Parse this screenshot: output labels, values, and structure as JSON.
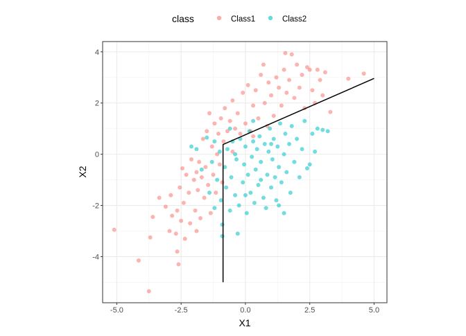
{
  "chart_data": {
    "type": "scatter",
    "xlabel": "X1",
    "ylabel": "X2",
    "xlim": [
      -5.55,
      5.5
    ],
    "ylim": [
      -5.8,
      4.4
    ],
    "x_ticks": [
      -5.0,
      -2.5,
      0.0,
      2.5,
      5.0
    ],
    "x_tick_labels": [
      "-5.0",
      "-2.5",
      "0.0",
      "2.5",
      "5.0"
    ],
    "y_ticks": [
      -4,
      -2,
      0,
      2,
      4
    ],
    "y_tick_labels": [
      "-4",
      "-2",
      "0",
      "2",
      "4"
    ],
    "grid": true,
    "legend": {
      "title": "class",
      "placement": "top"
    },
    "series": [
      {
        "name": "Class1",
        "color": "#F8766D",
        "points": [
          [
            -5.1,
            -2.95
          ],
          [
            -4.15,
            -4.15
          ],
          [
            -3.75,
            -5.35
          ],
          [
            -3.7,
            -3.25
          ],
          [
            -3.6,
            -2.45
          ],
          [
            -3.35,
            -1.7
          ],
          [
            -3.1,
            -2.05
          ],
          [
            -2.95,
            -3.0
          ],
          [
            -2.85,
            -2.4
          ],
          [
            -2.7,
            -3.1
          ],
          [
            -2.65,
            -3.8
          ],
          [
            -2.6,
            -4.3
          ],
          [
            -2.65,
            -2.2
          ],
          [
            -2.55,
            -1.3
          ],
          [
            -2.5,
            -2.6
          ],
          [
            -2.45,
            -0.55
          ],
          [
            -2.4,
            -1.9
          ],
          [
            -2.35,
            -3.3
          ],
          [
            -2.3,
            -0.8
          ],
          [
            -2.2,
            -1.5
          ],
          [
            -2.15,
            -2.7
          ],
          [
            -2.1,
            -0.2
          ],
          [
            -2.0,
            -1.0
          ],
          [
            -1.95,
            -2.2
          ],
          [
            -1.9,
            -0.7
          ],
          [
            -1.85,
            -1.4
          ],
          [
            -1.8,
            -0.3
          ],
          [
            -1.75,
            -2.5
          ],
          [
            -1.7,
            -0.9
          ],
          [
            -1.65,
            0.6
          ],
          [
            -1.6,
            -1.7
          ],
          [
            -1.55,
            -0.5
          ],
          [
            -1.5,
            0.9
          ],
          [
            -1.45,
            -1.2
          ],
          [
            -1.4,
            1.6
          ],
          [
            -1.35,
            -2.3
          ],
          [
            -1.3,
            0.3
          ],
          [
            -1.25,
            -0.8
          ],
          [
            -1.2,
            1.2
          ],
          [
            -1.15,
            -1.5
          ],
          [
            -1.1,
            0.0
          ],
          [
            -1.05,
            0.8
          ],
          [
            -1.0,
            -0.4
          ],
          [
            -0.95,
            1.4
          ],
          [
            -0.9,
            -1.1
          ],
          [
            -0.85,
            0.5
          ],
          [
            -0.8,
            1.8
          ],
          [
            -0.7,
            0.9
          ],
          [
            -0.6,
            1.3
          ],
          [
            -0.5,
            2.1
          ],
          [
            -0.4,
            1.0
          ],
          [
            -0.3,
            1.6
          ],
          [
            -0.2,
            0.8
          ],
          [
            -0.1,
            2.4
          ],
          [
            0.0,
            1.2
          ],
          [
            0.1,
            2.7
          ],
          [
            0.2,
            0.9
          ],
          [
            0.3,
            1.9
          ],
          [
            0.4,
            2.5
          ],
          [
            0.5,
            1.4
          ],
          [
            0.6,
            3.1
          ],
          [
            0.7,
            3.5
          ],
          [
            0.75,
            2.0
          ],
          [
            0.85,
            1.1
          ],
          [
            0.9,
            2.8
          ],
          [
            1.0,
            2.3
          ],
          [
            1.1,
            1.5
          ],
          [
            1.2,
            3.0
          ],
          [
            1.3,
            2.6
          ],
          [
            1.4,
            1.9
          ],
          [
            1.5,
            3.3
          ],
          [
            1.55,
            3.95
          ],
          [
            1.6,
            2.4
          ],
          [
            1.7,
            2.9
          ],
          [
            1.8,
            3.9
          ],
          [
            1.9,
            2.2
          ],
          [
            2.0,
            3.5
          ],
          [
            2.1,
            2.6
          ],
          [
            2.2,
            3.1
          ],
          [
            2.3,
            1.8
          ],
          [
            2.4,
            3.4
          ],
          [
            2.5,
            3.3
          ],
          [
            2.6,
            2.5
          ],
          [
            2.7,
            2.0
          ],
          [
            2.8,
            3.3
          ],
          [
            2.9,
            2.9
          ],
          [
            3.0,
            2.3
          ],
          [
            3.1,
            3.2
          ],
          [
            3.3,
            1.65
          ],
          [
            4.0,
            2.95
          ],
          [
            4.6,
            3.15
          ],
          [
            -1.9,
            -3.0
          ],
          [
            -2.9,
            -1.6
          ],
          [
            -0.5,
            0.1
          ],
          [
            0.3,
            0.7
          ]
        ]
      },
      {
        "name": "Class2",
        "color": "#00BFC4",
        "points": [
          [
            -2.1,
            0.3
          ],
          [
            -1.9,
            0.2
          ],
          [
            -1.5,
            0.65
          ],
          [
            -1.7,
            -0.6
          ],
          [
            -1.4,
            -1.5
          ],
          [
            -1.3,
            -0.3
          ],
          [
            -1.2,
            -2.1
          ],
          [
            -1.1,
            -1.0
          ],
          [
            -1.0,
            0.1
          ],
          [
            -0.95,
            -1.8
          ],
          [
            -0.9,
            -2.75
          ],
          [
            -0.9,
            -3.2
          ],
          [
            -0.8,
            -0.5
          ],
          [
            -0.75,
            -1.3
          ],
          [
            -0.7,
            0.2
          ],
          [
            -0.6,
            -2.2
          ],
          [
            -0.55,
            -0.9
          ],
          [
            -0.5,
            0.5
          ],
          [
            -0.4,
            -1.6
          ],
          [
            -0.35,
            -0.2
          ],
          [
            -0.3,
            -3.1
          ],
          [
            -0.25,
            -2.0
          ],
          [
            -0.2,
            0.6
          ],
          [
            -0.1,
            -1.1
          ],
          [
            -0.05,
            -0.4
          ],
          [
            0.0,
            0.3
          ],
          [
            0.05,
            -2.3
          ],
          [
            0.1,
            -0.8
          ],
          [
            0.15,
            0.9
          ],
          [
            0.2,
            -1.5
          ],
          [
            0.25,
            -0.1
          ],
          [
            0.3,
            0.5
          ],
          [
            0.35,
            -1.9
          ],
          [
            0.4,
            -0.6
          ],
          [
            0.45,
            0.2
          ],
          [
            0.5,
            -1.2
          ],
          [
            0.55,
            0.7
          ],
          [
            0.6,
            -0.3
          ],
          [
            0.7,
            -1.7
          ],
          [
            0.75,
            0.4
          ],
          [
            0.8,
            -2.1
          ],
          [
            0.85,
            -0.8
          ],
          [
            0.9,
            0.1
          ],
          [
            0.95,
            1.0
          ],
          [
            1.0,
            -1.3
          ],
          [
            1.05,
            -0.2
          ],
          [
            1.1,
            0.6
          ],
          [
            1.15,
            -0.9
          ],
          [
            1.2,
            -1.8
          ],
          [
            1.25,
            0.3
          ],
          [
            1.3,
            -0.5
          ],
          [
            1.35,
            1.2
          ],
          [
            1.4,
            -1.1
          ],
          [
            1.5,
            -2.3
          ],
          [
            1.5,
            0.0
          ],
          [
            1.55,
            0.8
          ],
          [
            1.6,
            -0.7
          ],
          [
            1.7,
            0.4
          ],
          [
            1.75,
            -1.5
          ],
          [
            1.8,
            1.1
          ],
          [
            1.9,
            -0.3
          ],
          [
            2.0,
            0.6
          ],
          [
            2.1,
            -0.9
          ],
          [
            2.2,
            0.2
          ],
          [
            2.3,
            1.3
          ],
          [
            2.4,
            -0.55
          ],
          [
            2.5,
            -0.4
          ],
          [
            2.6,
            0.8
          ],
          [
            2.7,
            0.1
          ],
          [
            2.8,
            1.0
          ],
          [
            3.0,
            0.95
          ],
          [
            3.2,
            0.9
          ],
          [
            -0.6,
            1.0
          ],
          [
            0.3,
            1.3
          ],
          [
            -1.2,
            0.5
          ],
          [
            0.6,
            -1.0
          ],
          [
            1.3,
            -2.0
          ],
          [
            -0.4,
            0.0
          ],
          [
            0.0,
            -1.6
          ],
          [
            1.0,
            0.4
          ]
        ]
      }
    ],
    "decision_boundary": {
      "color": "#000000",
      "points": [
        [
          -0.87,
          -5.0
        ],
        [
          -0.87,
          0.38
        ],
        [
          5.0,
          2.96
        ]
      ]
    }
  }
}
